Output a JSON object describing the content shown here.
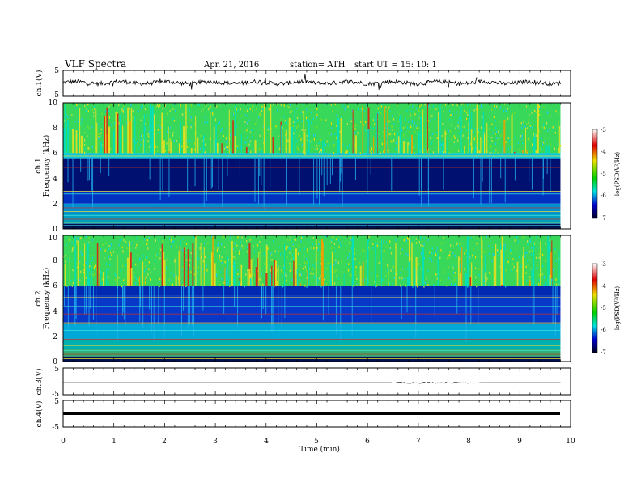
{
  "header": {
    "title": "VLF Spectra",
    "date": "Apr. 21, 2016",
    "station": "station= ATH",
    "start": "start  UT  =    15: 10: 1"
  },
  "chart_data": [
    {
      "type": "line",
      "name": "ch1-waveform",
      "ylabel": "ch.1(V)",
      "ylim": [
        -5,
        5
      ],
      "yticks": [
        "5",
        "-5"
      ],
      "xlim": [
        0,
        10
      ]
    },
    {
      "type": "heatmap",
      "name": "ch1-spectrogram",
      "ylabel_top": "ch.1",
      "ylabel": "Frequency  (kHz)",
      "ylim": [
        0,
        10
      ],
      "yticks": [
        "0",
        "2",
        "4",
        "6",
        "8",
        "10"
      ],
      "xlim": [
        0,
        10
      ],
      "data_end_min": 9.8,
      "colorbar": {
        "label": "log(PSD(V²/Hz)",
        "range": [
          -7,
          -3
        ],
        "ticks": [
          "-3",
          "-4",
          "-5",
          "-6",
          "-7"
        ]
      }
    },
    {
      "type": "heatmap",
      "name": "ch2-spectrogram",
      "ylabel_top": "ch.2",
      "ylabel": "Frequency  (kHz)",
      "ylim": [
        0,
        10
      ],
      "yticks": [
        "0",
        "2",
        "4",
        "6",
        "8",
        "10"
      ],
      "xlim": [
        0,
        10
      ],
      "data_end_min": 9.8,
      "colorbar": {
        "label": "log(PSD(V²/Hz)",
        "range": [
          -7,
          -3
        ],
        "ticks": [
          "-3",
          "-4",
          "-5",
          "-6",
          "-7"
        ]
      }
    },
    {
      "type": "line",
      "name": "ch3-waveform",
      "ylabel": "ch.3(V)",
      "ylim": [
        -5,
        5
      ],
      "yticks": [
        "5",
        "-5"
      ],
      "xlim": [
        0,
        10
      ]
    },
    {
      "type": "line",
      "name": "ch4-waveform",
      "ylabel": "ch.4(V)",
      "ylim": [
        -5,
        5
      ],
      "yticks": [
        "5",
        "-5"
      ],
      "xlim": [
        0,
        10
      ]
    }
  ],
  "xaxis": {
    "label": "Time  (min)",
    "ticks": [
      "0",
      "1",
      "2",
      "3",
      "4",
      "5",
      "6",
      "7",
      "8",
      "9",
      "10"
    ],
    "range": [
      0,
      10
    ]
  },
  "colors": {
    "cb_top": "#ffffff",
    "cb_mid_red": "#e00000",
    "cb_yellow": "#f0e000",
    "cb_green": "#00d000",
    "cb_cyan": "#00e0e0",
    "cb_blue": "#0000d0",
    "cb_bottom": "#000020"
  }
}
